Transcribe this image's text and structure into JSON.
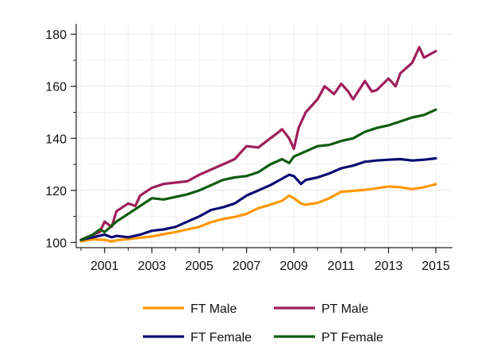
{
  "chart_data": {
    "type": "line",
    "title": "",
    "xlabel": "",
    "ylabel": "",
    "xlim": [
      1999.8,
      2015.7
    ],
    "ylim": [
      98,
      184
    ],
    "grid": true,
    "legend_position": "bottom",
    "x_ticks": [
      {
        "value": 2001,
        "label": "2001"
      },
      {
        "value": 2003,
        "label": "2003"
      },
      {
        "value": 2005,
        "label": "2005"
      },
      {
        "value": 2007,
        "label": "2007"
      },
      {
        "value": 2009,
        "label": "2009"
      },
      {
        "value": 2011,
        "label": "2011"
      },
      {
        "value": 2013,
        "label": "2013"
      },
      {
        "value": 2015,
        "label": "2015"
      }
    ],
    "y_ticks": [
      {
        "value": 100,
        "label": "100"
      },
      {
        "value": 120,
        "label": "120"
      },
      {
        "value": 140,
        "label": "140"
      },
      {
        "value": 160,
        "label": "160"
      },
      {
        "value": 180,
        "label": "180"
      }
    ],
    "series": [
      {
        "name": "FT Male",
        "color": "#ff9900",
        "points": [
          [
            2000.0,
            100.5
          ],
          [
            2000.5,
            101.2
          ],
          [
            2001.0,
            101.0
          ],
          [
            2001.3,
            100.4
          ],
          [
            2001.5,
            100.8
          ],
          [
            2002.0,
            101.3
          ],
          [
            2002.5,
            101.8
          ],
          [
            2003.0,
            102.3
          ],
          [
            2003.5,
            103.2
          ],
          [
            2004.0,
            104.0
          ],
          [
            2004.5,
            105.0
          ],
          [
            2005.0,
            106.0
          ],
          [
            2005.5,
            107.8
          ],
          [
            2006.0,
            109.0
          ],
          [
            2006.5,
            109.8
          ],
          [
            2007.0,
            111.0
          ],
          [
            2007.5,
            113.2
          ],
          [
            2008.0,
            114.5
          ],
          [
            2008.5,
            116.0
          ],
          [
            2008.8,
            118.0
          ],
          [
            2009.0,
            117.0
          ],
          [
            2009.3,
            115.0
          ],
          [
            2009.5,
            114.5
          ],
          [
            2010.0,
            115.2
          ],
          [
            2010.5,
            117.0
          ],
          [
            2011.0,
            119.5
          ],
          [
            2011.5,
            119.8
          ],
          [
            2012.0,
            120.2
          ],
          [
            2012.5,
            120.8
          ],
          [
            2013.0,
            121.5
          ],
          [
            2013.5,
            121.2
          ],
          [
            2014.0,
            120.5
          ],
          [
            2014.5,
            121.2
          ],
          [
            2015.0,
            122.4
          ]
        ]
      },
      {
        "name": "PT Male",
        "color": "#9e1f5a",
        "points": [
          [
            2000.0,
            101.0
          ],
          [
            2000.5,
            103.0
          ],
          [
            2000.8,
            104.0
          ],
          [
            2001.0,
            108.0
          ],
          [
            2001.3,
            106.0
          ],
          [
            2001.5,
            112.0
          ],
          [
            2002.0,
            115.0
          ],
          [
            2002.3,
            114.0
          ],
          [
            2002.5,
            118.0
          ],
          [
            2003.0,
            121.0
          ],
          [
            2003.5,
            122.5
          ],
          [
            2004.0,
            123.0
          ],
          [
            2004.5,
            123.5
          ],
          [
            2005.0,
            126.0
          ],
          [
            2005.5,
            128.0
          ],
          [
            2006.0,
            130.0
          ],
          [
            2006.5,
            132.0
          ],
          [
            2007.0,
            137.0
          ],
          [
            2007.5,
            136.5
          ],
          [
            2008.0,
            140.0
          ],
          [
            2008.3,
            142.0
          ],
          [
            2008.5,
            143.5
          ],
          [
            2008.8,
            140.0
          ],
          [
            2009.0,
            136.0
          ],
          [
            2009.2,
            144.0
          ],
          [
            2009.5,
            150.0
          ],
          [
            2010.0,
            155.0
          ],
          [
            2010.3,
            160.0
          ],
          [
            2010.7,
            157.0
          ],
          [
            2011.0,
            161.0
          ],
          [
            2011.3,
            158.0
          ],
          [
            2011.5,
            155.0
          ],
          [
            2012.0,
            162.0
          ],
          [
            2012.3,
            158.0
          ],
          [
            2012.5,
            158.5
          ],
          [
            2013.0,
            163.0
          ],
          [
            2013.3,
            160.0
          ],
          [
            2013.5,
            165.0
          ],
          [
            2014.0,
            169.0
          ],
          [
            2014.3,
            175.0
          ],
          [
            2014.5,
            171.0
          ],
          [
            2015.0,
            173.5
          ]
        ]
      },
      {
        "name": "FT Female",
        "color": "#0c0c73",
        "points": [
          [
            2000.0,
            101.0
          ],
          [
            2000.5,
            102.0
          ],
          [
            2001.0,
            103.0
          ],
          [
            2001.3,
            102.0
          ],
          [
            2001.5,
            102.5
          ],
          [
            2002.0,
            102.0
          ],
          [
            2002.5,
            103.0
          ],
          [
            2003.0,
            104.5
          ],
          [
            2003.5,
            105.0
          ],
          [
            2004.0,
            106.0
          ],
          [
            2004.5,
            108.0
          ],
          [
            2005.0,
            110.0
          ],
          [
            2005.5,
            112.5
          ],
          [
            2006.0,
            113.5
          ],
          [
            2006.5,
            115.0
          ],
          [
            2007.0,
            118.0
          ],
          [
            2007.5,
            120.0
          ],
          [
            2008.0,
            122.0
          ],
          [
            2008.5,
            124.5
          ],
          [
            2008.8,
            126.0
          ],
          [
            2009.0,
            125.5
          ],
          [
            2009.3,
            122.5
          ],
          [
            2009.5,
            124.0
          ],
          [
            2010.0,
            125.0
          ],
          [
            2010.5,
            126.5
          ],
          [
            2011.0,
            128.5
          ],
          [
            2011.5,
            129.5
          ],
          [
            2012.0,
            131.0
          ],
          [
            2012.5,
            131.5
          ],
          [
            2013.0,
            131.8
          ],
          [
            2013.5,
            132.0
          ],
          [
            2014.0,
            131.5
          ],
          [
            2014.5,
            131.8
          ],
          [
            2015.0,
            132.3
          ]
        ]
      },
      {
        "name": "PT Female",
        "color": "#0f5c0f",
        "points": [
          [
            2000.0,
            101.0
          ],
          [
            2000.5,
            103.0
          ],
          [
            2000.8,
            105.0
          ],
          [
            2001.0,
            104.0
          ],
          [
            2001.5,
            108.0
          ],
          [
            2002.0,
            111.0
          ],
          [
            2002.5,
            114.0
          ],
          [
            2003.0,
            117.0
          ],
          [
            2003.5,
            116.5
          ],
          [
            2004.0,
            117.5
          ],
          [
            2004.5,
            118.5
          ],
          [
            2005.0,
            120.0
          ],
          [
            2005.5,
            122.0
          ],
          [
            2006.0,
            124.0
          ],
          [
            2006.5,
            125.0
          ],
          [
            2007.0,
            125.5
          ],
          [
            2007.5,
            127.0
          ],
          [
            2008.0,
            130.0
          ],
          [
            2008.5,
            132.0
          ],
          [
            2008.8,
            130.5
          ],
          [
            2009.0,
            133.0
          ],
          [
            2009.5,
            135.0
          ],
          [
            2010.0,
            137.0
          ],
          [
            2010.5,
            137.5
          ],
          [
            2011.0,
            139.0
          ],
          [
            2011.5,
            140.0
          ],
          [
            2012.0,
            142.5
          ],
          [
            2012.5,
            144.0
          ],
          [
            2013.0,
            145.0
          ],
          [
            2013.5,
            146.5
          ],
          [
            2014.0,
            148.0
          ],
          [
            2014.5,
            149.0
          ],
          [
            2015.0,
            151.0
          ]
        ]
      }
    ]
  }
}
